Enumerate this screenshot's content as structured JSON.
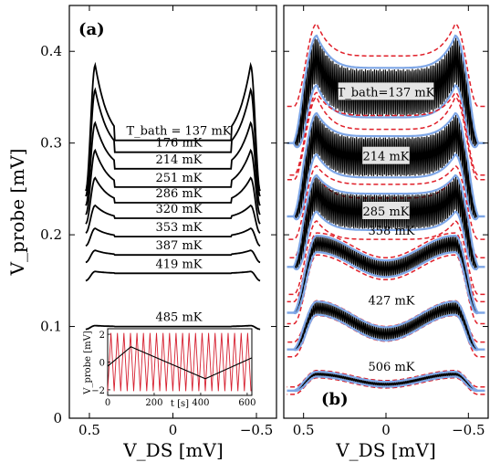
{
  "chart_data": [
    {
      "type": "line",
      "panel_label": "(a)",
      "xlabel": "V_DS  [mV]",
      "ylabel": "V_probe  [mV]",
      "xlim": [
        0.62,
        -0.62
      ],
      "ylim": [
        0,
        0.45
      ],
      "xticks": [
        "0.5",
        "0",
        "−0.5"
      ],
      "yticks": [
        "0",
        "0.1",
        "0.2",
        "0.3",
        "0.4"
      ],
      "series": [
        {
          "name": "T_bath = 137 mK",
          "label": "T_bath = 137 mK",
          "v0": 0.303,
          "peak": 0.385,
          "min": 0.35,
          "edge": 0.248
        },
        {
          "name": "176 mK",
          "label": "176 mK",
          "v0": 0.29,
          "peak": 0.358,
          "min": 0.337,
          "edge": 0.242
        },
        {
          "name": "214 mK",
          "label": "214 mK",
          "v0": 0.272,
          "peak": 0.322,
          "min": 0.313,
          "edge": 0.232
        },
        {
          "name": "251 mK",
          "label": "251 mK",
          "v0": 0.252,
          "peak": 0.292,
          "min": 0.288,
          "edge": 0.222
        },
        {
          "name": "286 mK",
          "label": "286 mK",
          "v0": 0.235,
          "peak": 0.262,
          "min": 0.262,
          "edge": 0.212
        },
        {
          "name": "320 mK",
          "label": "320 mK",
          "v0": 0.218,
          "peak": 0.232,
          "min": 0.232,
          "edge": 0.202
        },
        {
          "name": "353 mK",
          "label": "353 mK",
          "v0": 0.198,
          "peak": 0.207,
          "min": 0.207,
          "edge": 0.188
        },
        {
          "name": "387 mK",
          "label": "387 mK",
          "v0": 0.178,
          "peak": 0.183,
          "min": 0.183,
          "edge": 0.17
        },
        {
          "name": "419 mK",
          "label": "419 mK",
          "v0": 0.158,
          "peak": 0.16,
          "min": 0.16,
          "edge": 0.15
        },
        {
          "name": "485 mK",
          "label": "485 mK",
          "v0": 0.1,
          "peak": 0.101,
          "min": 0.101,
          "edge": 0.097
        }
      ],
      "inset": {
        "xlabel": "t [s]",
        "ylabel": "V_probe [mV]",
        "xticks": [
          "0",
          "200",
          "400",
          "600"
        ],
        "yticks": [
          "2",
          "0",
          "−2"
        ],
        "xlim": [
          0,
          620
        ],
        "ylim": [
          -2.4,
          2.4
        ],
        "triangle_points": [
          [
            0,
            -0.3
          ],
          [
            100,
            1.1
          ],
          [
            420,
            -1.2
          ],
          [
            620,
            0.3
          ]
        ],
        "oscillation_period_s": 28,
        "oscillation_amplitude": 2.1
      }
    },
    {
      "type": "line",
      "panel_label": "(b)",
      "xlabel": "V_DS  [mV]",
      "xlim": [
        0.62,
        -0.62
      ],
      "ylim": [
        0,
        0.45
      ],
      "xticks": [
        "0.5",
        "0",
        "−0.5"
      ],
      "series": [
        {
          "name": "T_bath = 137 mK",
          "label": "T_bath=137 mK",
          "center": 0.355,
          "shoulder": 0.39,
          "edge": 0.3,
          "osc_amp": 0.03,
          "red_spread": 0.04
        },
        {
          "name": "214 mK",
          "label": "214 mK",
          "center": 0.285,
          "shoulder": 0.31,
          "edge": 0.22,
          "osc_amp": 0.025,
          "red_spread": 0.045
        },
        {
          "name": "285 mK",
          "label": "285 mK",
          "center": 0.225,
          "shoulder": 0.245,
          "edge": 0.165,
          "osc_amp": 0.022,
          "red_spread": 0.03
        },
        {
          "name": "358 mK",
          "label": "358 mK",
          "center": 0.163,
          "shoulder": 0.19,
          "edge": 0.115,
          "osc_amp": 0.01,
          "red_spread": 0.012
        },
        {
          "name": "427 mK",
          "label": "427 mK",
          "center": 0.092,
          "shoulder": 0.12,
          "edge": 0.075,
          "osc_amp": 0.008,
          "red_spread": 0.008
        },
        {
          "name": "506 mK",
          "label": "506 mK",
          "center": 0.037,
          "shoulder": 0.048,
          "edge": 0.03,
          "osc_amp": 0.003,
          "red_spread": 0.004
        }
      ],
      "colors": {
        "data": "#000000",
        "model": "#7ea6e6",
        "model_bounds": "#e0202a",
        "inset_osc": "#d62030"
      }
    }
  ]
}
